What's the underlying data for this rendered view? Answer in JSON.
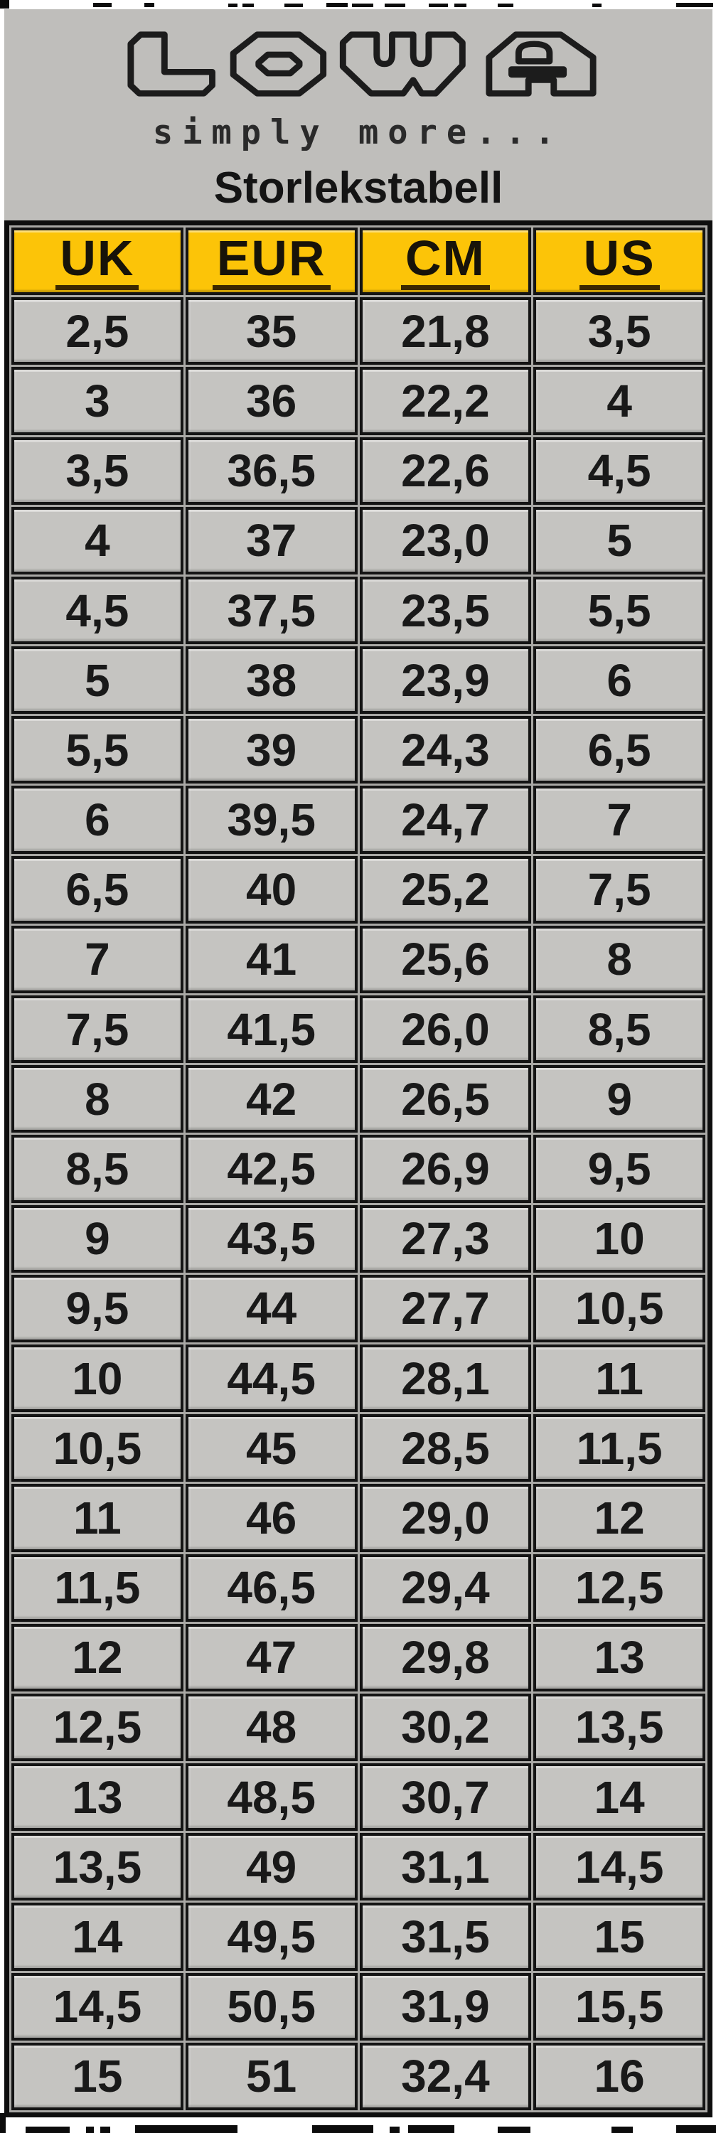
{
  "brand": {
    "logo_text": "LOWA",
    "tagline": "simply more...",
    "title": "Storlekstabell"
  },
  "chart_data": {
    "type": "table",
    "title": "Storlekstabell",
    "columns": [
      "UK",
      "EUR",
      "CM",
      "US"
    ],
    "rows": [
      [
        "2,5",
        "35",
        "21,8",
        "3,5"
      ],
      [
        "3",
        "36",
        "22,2",
        "4"
      ],
      [
        "3,5",
        "36,5",
        "22,6",
        "4,5"
      ],
      [
        "4",
        "37",
        "23,0",
        "5"
      ],
      [
        "4,5",
        "37,5",
        "23,5",
        "5,5"
      ],
      [
        "5",
        "38",
        "23,9",
        "6"
      ],
      [
        "5,5",
        "39",
        "24,3",
        "6,5"
      ],
      [
        "6",
        "39,5",
        "24,7",
        "7"
      ],
      [
        "6,5",
        "40",
        "25,2",
        "7,5"
      ],
      [
        "7",
        "41",
        "25,6",
        "8"
      ],
      [
        "7,5",
        "41,5",
        "26,0",
        "8,5"
      ],
      [
        "8",
        "42",
        "26,5",
        "9"
      ],
      [
        "8,5",
        "42,5",
        "26,9",
        "9,5"
      ],
      [
        "9",
        "43,5",
        "27,3",
        "10"
      ],
      [
        "9,5",
        "44",
        "27,7",
        "10,5"
      ],
      [
        "10",
        "44,5",
        "28,1",
        "11"
      ],
      [
        "10,5",
        "45",
        "28,5",
        "11,5"
      ],
      [
        "11",
        "46",
        "29,0",
        "12"
      ],
      [
        "11,5",
        "46,5",
        "29,4",
        "12,5"
      ],
      [
        "12",
        "47",
        "29,8",
        "13"
      ],
      [
        "12,5",
        "48",
        "30,2",
        "13,5"
      ],
      [
        "13",
        "48,5",
        "30,7",
        "14"
      ],
      [
        "13,5",
        "49",
        "31,1",
        "14,5"
      ],
      [
        "14",
        "49,5",
        "31,5",
        "15"
      ],
      [
        "14,5",
        "50,5",
        "31,9",
        "15,5"
      ],
      [
        "15",
        "51",
        "32,4",
        "16"
      ]
    ],
    "layout": {
      "header_position": "top",
      "grid": true
    }
  },
  "colors": {
    "header_background": "#fcc408",
    "header_underline": "#3c2800",
    "cell_background": "#c5c4c1",
    "panel_background": "#bfbebb",
    "border": "#0e0e0e",
    "text": "#191919"
  }
}
